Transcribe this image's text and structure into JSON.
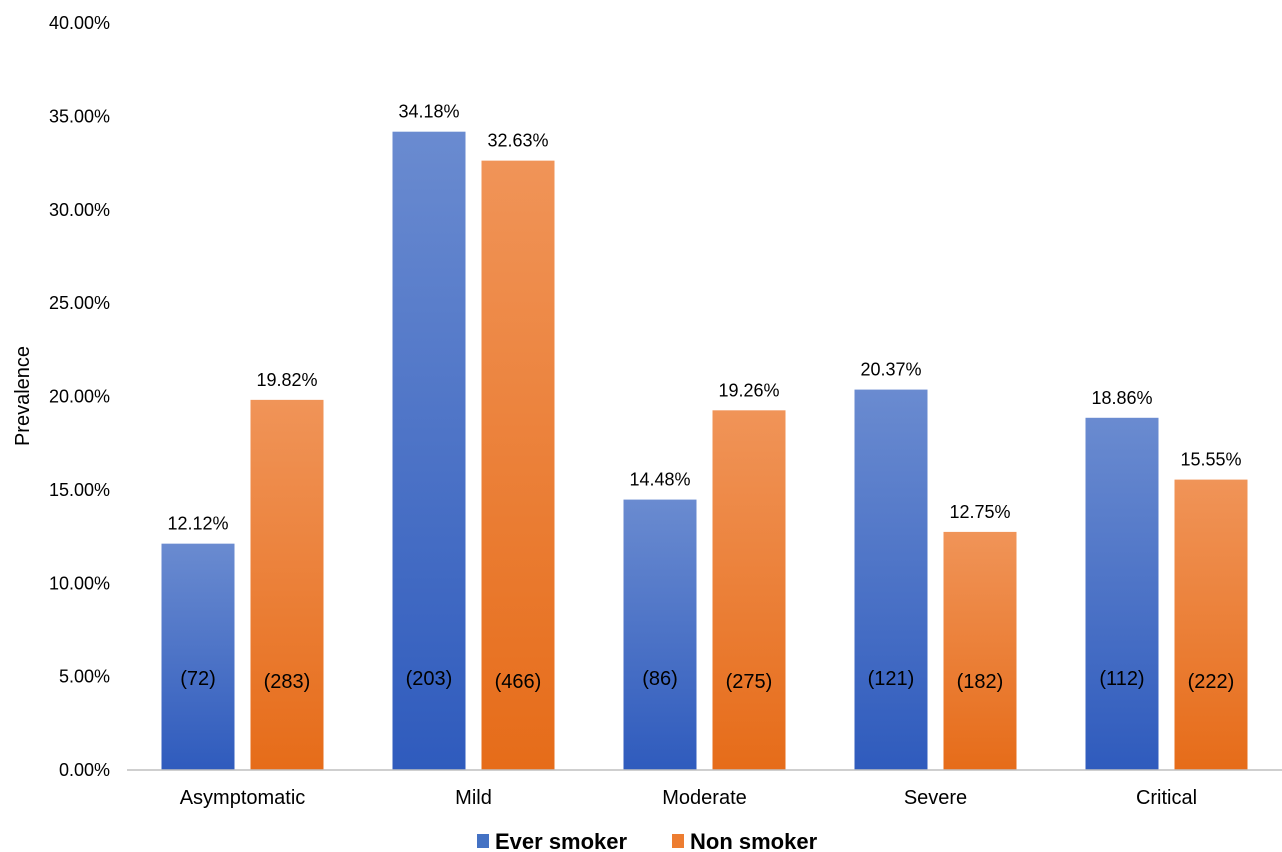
{
  "chart_data": {
    "type": "bar",
    "title": "",
    "xlabel": "",
    "ylabel": "Prevalence",
    "ylim": [
      0,
      40
    ],
    "y_tick_values": [
      0,
      5,
      10,
      15,
      20,
      25,
      30,
      35,
      40
    ],
    "y_tick_labels": [
      "0.00%",
      "5.00%",
      "10.00%",
      "15.00%",
      "20.00%",
      "25.00%",
      "30.00%",
      "35.00%",
      "40.00%"
    ],
    "categories": [
      "Asymptomatic",
      "Mild",
      "Moderate",
      "Severe",
      "Critical"
    ],
    "grid": false,
    "legend_position": "bottom",
    "series": [
      {
        "name": "Ever smoker",
        "color": "#4472C4",
        "values": [
          12.12,
          34.18,
          14.48,
          20.37,
          18.86
        ],
        "value_labels": [
          "12.12%",
          "34.18%",
          "14.48%",
          "20.37%",
          "18.86%"
        ],
        "count_labels": [
          "(72)",
          "(203)",
          "(86)",
          "(121)",
          "(112)"
        ]
      },
      {
        "name": "Non smoker",
        "color": "#ED7D31",
        "values": [
          19.82,
          32.63,
          19.26,
          12.75,
          15.55
        ],
        "value_labels": [
          "19.82%",
          "32.63%",
          "19.26%",
          "12.75%",
          "15.55%"
        ],
        "count_labels": [
          "(283)",
          "(466)",
          "(275)",
          "(182)",
          "(222)"
        ]
      }
    ]
  }
}
